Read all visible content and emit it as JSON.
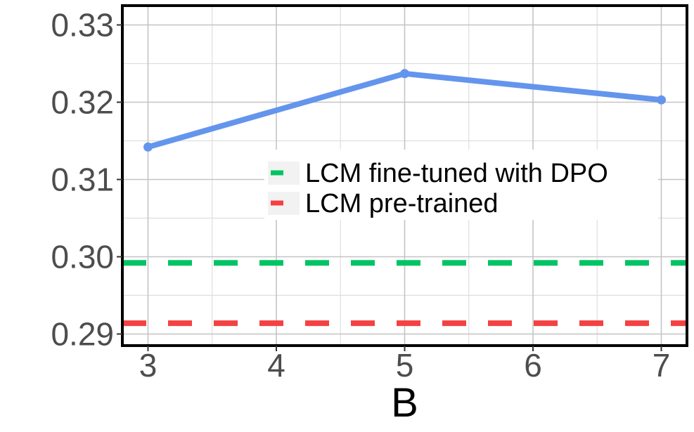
{
  "chart_data": {
    "type": "line",
    "title": "",
    "xlabel": "B",
    "ylabel": "",
    "x": [
      3,
      4,
      5,
      6,
      7
    ],
    "xticks": [
      "3",
      "4",
      "5",
      "6",
      "7"
    ],
    "yticks": [
      "0.29",
      "0.30",
      "0.31",
      "0.32",
      "0.33"
    ],
    "xlim": [
      2.8,
      7.2
    ],
    "ylim": [
      0.2885,
      0.3325
    ],
    "grid": true,
    "legend_position": "center-right",
    "series": [
      {
        "type": "line",
        "x": [
          3,
          5,
          7
        ],
        "values": [
          0.3142,
          0.3237,
          0.3203
        ],
        "color": "#6495ed"
      }
    ],
    "reference_lines": [
      {
        "name": "LCM fine-tuned with DPO",
        "y": 0.2992,
        "color": "#00c463",
        "style": "dashed"
      },
      {
        "name": "LCM pre-trained",
        "y": 0.2914,
        "color": "#f44141",
        "style": "dashed"
      }
    ]
  }
}
